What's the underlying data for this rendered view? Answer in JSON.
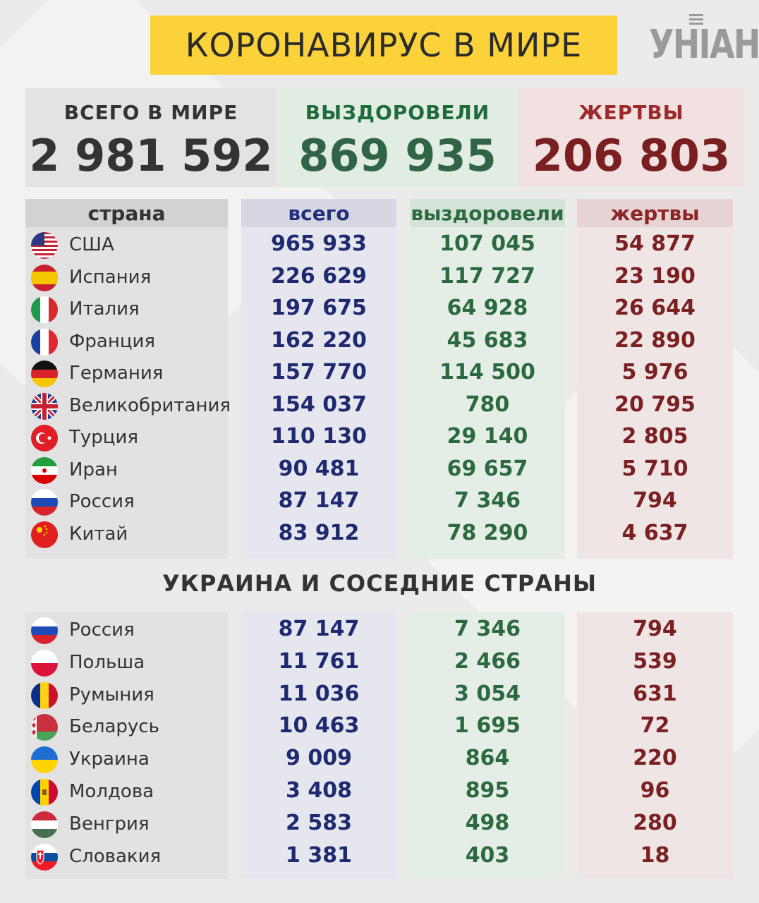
{
  "title": "КОРОНАВИРУС В МИРЕ",
  "logo": "УНІАН",
  "stats": {
    "total": {
      "label": "ВСЕГО В МИРЕ",
      "value": "2 981 592"
    },
    "recovered": {
      "label": "ВЫЗДОРОВЕЛИ",
      "value": "869 935"
    },
    "deaths": {
      "label": "ЖЕРТВЫ",
      "value": "206 803"
    }
  },
  "columns": {
    "country": "страна",
    "total": "всего",
    "recovered": "выздоровели",
    "deaths": "жертвы"
  },
  "world_rows": [
    {
      "flag": "usa-flag-icon",
      "country": "США",
      "total": "965 933",
      "recovered": "107 045",
      "deaths": "54 877"
    },
    {
      "flag": "spain-flag-icon",
      "country": "Испания",
      "total": "226 629",
      "recovered": "117 727",
      "deaths": "23 190"
    },
    {
      "flag": "italy-flag-icon",
      "country": "Италия",
      "total": "197 675",
      "recovered": "64 928",
      "deaths": "26 644"
    },
    {
      "flag": "france-flag-icon",
      "country": "Франция",
      "total": "162 220",
      "recovered": "45 683",
      "deaths": "22 890"
    },
    {
      "flag": "germany-flag-icon",
      "country": "Германия",
      "total": "157 770",
      "recovered": "114 500",
      "deaths": "5 976"
    },
    {
      "flag": "uk-flag-icon",
      "country": "Великобритания",
      "total": "154 037",
      "recovered": "780",
      "deaths": "20 795"
    },
    {
      "flag": "turkey-flag-icon",
      "country": "Турция",
      "total": "110 130",
      "recovered": "29 140",
      "deaths": "2 805"
    },
    {
      "flag": "iran-flag-icon",
      "country": "Иран",
      "total": "90 481",
      "recovered": "69 657",
      "deaths": "5 710"
    },
    {
      "flag": "russia-flag-icon",
      "country": "Россия",
      "total": "87 147",
      "recovered": "7 346",
      "deaths": "794"
    },
    {
      "flag": "china-flag-icon",
      "country": "Китай",
      "total": "83 912",
      "recovered": "78 290",
      "deaths": "4 637"
    }
  ],
  "section_title": "УКРАИНА И СОСЕДНИЕ СТРАНЫ",
  "neighbor_rows": [
    {
      "flag": "russia-flag-icon",
      "country": "Россия",
      "total": "87 147",
      "recovered": "7 346",
      "deaths": "794"
    },
    {
      "flag": "poland-flag-icon",
      "country": "Польша",
      "total": "11 761",
      "recovered": "2 466",
      "deaths": "539"
    },
    {
      "flag": "romania-flag-icon",
      "country": "Румыния",
      "total": "11 036",
      "recovered": "3 054",
      "deaths": "631"
    },
    {
      "flag": "belarus-flag-icon",
      "country": "Беларусь",
      "total": "10 463",
      "recovered": "1 695",
      "deaths": "72"
    },
    {
      "flag": "ukraine-flag-icon",
      "country": "Украина",
      "total": "9 009",
      "recovered": "864",
      "deaths": "220"
    },
    {
      "flag": "moldova-flag-icon",
      "country": "Молдова",
      "total": "3 408",
      "recovered": "895",
      "deaths": "96"
    },
    {
      "flag": "hungary-flag-icon",
      "country": "Венгрия",
      "total": "2 583",
      "recovered": "498",
      "deaths": "280"
    },
    {
      "flag": "slovakia-flag-icon",
      "country": "Словакия",
      "total": "1 381",
      "recovered": "403",
      "deaths": "18"
    }
  ]
}
